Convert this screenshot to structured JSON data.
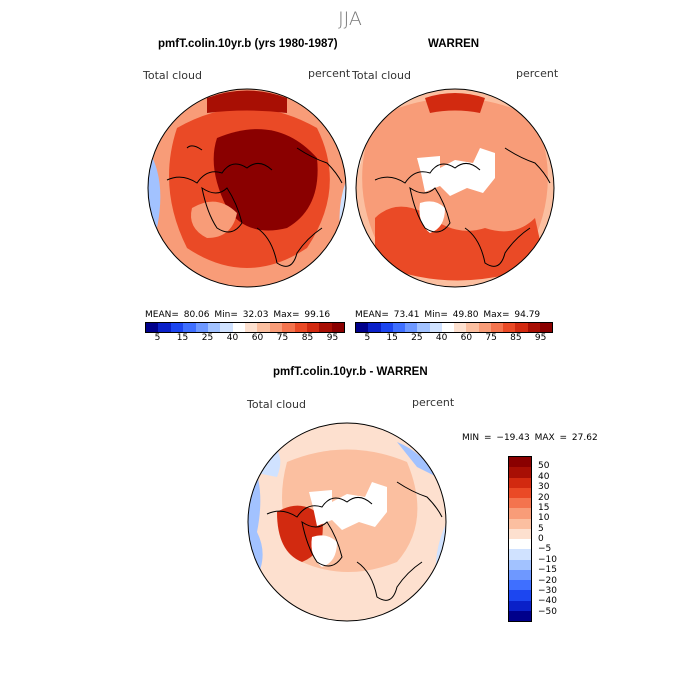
{
  "figure": {
    "season": "JJA"
  },
  "panels": {
    "model": {
      "title": "pmfT.colin.10yr.b (yrs 1980-1987)",
      "variable": "Total cloud",
      "units": "percent",
      "stats": "MEAN=  80.06   Min=  32.03   Max=  99.16"
    },
    "obs": {
      "title": "WARREN",
      "variable": "Total cloud",
      "units": "percent",
      "stats": "MEAN=  73.41   Min=  49.80   Max=  94.79"
    },
    "diff": {
      "title": "pmfT.colin.10yr.b - WARREN",
      "variable": "Total cloud",
      "units": "percent",
      "stats": "MIN = −19.43 MAX =   27.62"
    }
  },
  "colorbar_abs": {
    "colors": [
      "#00008b",
      "#0a20c8",
      "#1c46f0",
      "#3f6fff",
      "#6e98ff",
      "#a2c2ff",
      "#d0e2ff",
      "#ffffff",
      "#fde0cf",
      "#fbbfa0",
      "#f89c78",
      "#f4744e",
      "#ea4a26",
      "#d22a10",
      "#a80f04",
      "#8a0000"
    ],
    "labels": [
      "5",
      "15",
      "25",
      "40",
      "60",
      "75",
      "85",
      "95"
    ]
  },
  "colorbar_diff": {
    "colors": [
      "#8a0000",
      "#a80f04",
      "#d22a10",
      "#ea4a26",
      "#f4744e",
      "#f89c78",
      "#fbbfa0",
      "#fde0cf",
      "#ffffff",
      "#d0e2ff",
      "#a2c2ff",
      "#6e98ff",
      "#3f6fff",
      "#1c46f0",
      "#0a20c8",
      "#00008b"
    ],
    "labels": [
      "50",
      "40",
      "30",
      "20",
      "15",
      "10",
      "5",
      "0",
      "−5",
      "−10",
      "−15",
      "−20",
      "−30",
      "−40",
      "−50"
    ]
  },
  "map_fill": {
    "model_primary": "#ea4a26",
    "model_core": "#8a0000",
    "obs_primary": "#f4744e",
    "obs_hole": "#ffffff",
    "diff_primary": "#fbbfa0",
    "diff_blue": "#a2c2ff",
    "diff_hot": "#d22a10"
  }
}
